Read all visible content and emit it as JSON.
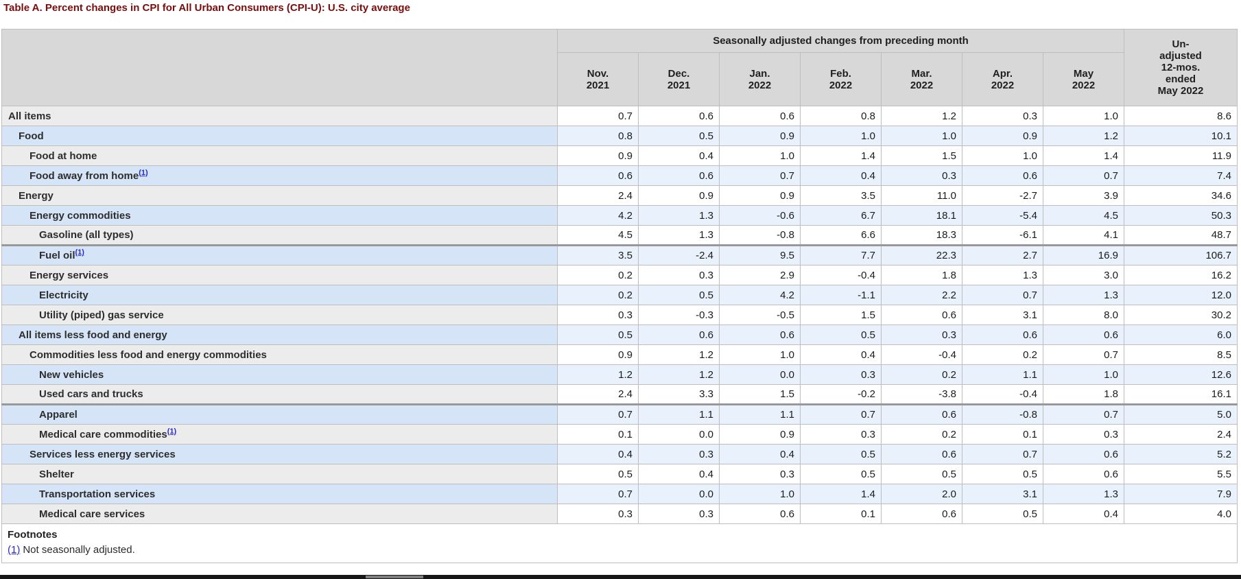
{
  "page": {
    "title": "Table A. Percent changes in CPI for All Urban Consumers (CPI-U): U.S. city average"
  },
  "table": {
    "header": {
      "spanner": "Seasonally adjusted changes from preceding month",
      "unadjusted": "Un-\nadjusted\n12-mos.\nended\nMay 2022",
      "months": [
        "Nov.\n2021",
        "Dec.\n2021",
        "Jan.\n2022",
        "Feb.\n2022",
        "Mar.\n2022",
        "Apr.\n2022",
        "May\n2022"
      ]
    },
    "rows": [
      {
        "label": "All items",
        "footnote": "",
        "level": 0,
        "shade": "gray",
        "separator": false,
        "monthly": [
          "0.7",
          "0.6",
          "0.6",
          "0.8",
          "1.2",
          "0.3",
          "1.0"
        ],
        "yoy": "8.6"
      },
      {
        "label": "Food",
        "footnote": "",
        "level": 1,
        "shade": "blue",
        "separator": false,
        "monthly": [
          "0.8",
          "0.5",
          "0.9",
          "1.0",
          "1.0",
          "0.9",
          "1.2"
        ],
        "yoy": "10.1"
      },
      {
        "label": "Food at home",
        "footnote": "",
        "level": 2,
        "shade": "gray",
        "separator": false,
        "monthly": [
          "0.9",
          "0.4",
          "1.0",
          "1.4",
          "1.5",
          "1.0",
          "1.4"
        ],
        "yoy": "11.9"
      },
      {
        "label": "Food away from home",
        "footnote": "(1)",
        "level": 2,
        "shade": "blue",
        "separator": false,
        "monthly": [
          "0.6",
          "0.6",
          "0.7",
          "0.4",
          "0.3",
          "0.6",
          "0.7"
        ],
        "yoy": "7.4"
      },
      {
        "label": "Energy",
        "footnote": "",
        "level": 1,
        "shade": "gray",
        "separator": false,
        "monthly": [
          "2.4",
          "0.9",
          "0.9",
          "3.5",
          "11.0",
          "-2.7",
          "3.9"
        ],
        "yoy": "34.6"
      },
      {
        "label": "Energy commodities",
        "footnote": "",
        "level": 2,
        "shade": "blue",
        "separator": false,
        "monthly": [
          "4.2",
          "1.3",
          "-0.6",
          "6.7",
          "18.1",
          "-5.4",
          "4.5"
        ],
        "yoy": "50.3"
      },
      {
        "label": "Gasoline (all types)",
        "footnote": "",
        "level": 3,
        "shade": "gray",
        "separator": false,
        "monthly": [
          "4.5",
          "1.3",
          "-0.8",
          "6.6",
          "18.3",
          "-6.1",
          "4.1"
        ],
        "yoy": "48.7"
      },
      {
        "label": "Fuel oil",
        "footnote": "(1)",
        "level": 3,
        "shade": "blue",
        "separator": true,
        "monthly": [
          "3.5",
          "-2.4",
          "9.5",
          "7.7",
          "22.3",
          "2.7",
          "16.9"
        ],
        "yoy": "106.7"
      },
      {
        "label": "Energy services",
        "footnote": "",
        "level": 2,
        "shade": "gray",
        "separator": false,
        "monthly": [
          "0.2",
          "0.3",
          "2.9",
          "-0.4",
          "1.8",
          "1.3",
          "3.0"
        ],
        "yoy": "16.2"
      },
      {
        "label": "Electricity",
        "footnote": "",
        "level": 3,
        "shade": "blue",
        "separator": false,
        "monthly": [
          "0.2",
          "0.5",
          "4.2",
          "-1.1",
          "2.2",
          "0.7",
          "1.3"
        ],
        "yoy": "12.0"
      },
      {
        "label": "Utility (piped) gas service",
        "footnote": "",
        "level": 3,
        "shade": "gray",
        "separator": false,
        "monthly": [
          "0.3",
          "-0.3",
          "-0.5",
          "1.5",
          "0.6",
          "3.1",
          "8.0"
        ],
        "yoy": "30.2"
      },
      {
        "label": "All items less food and energy",
        "footnote": "",
        "level": 1,
        "shade": "blue",
        "separator": false,
        "monthly": [
          "0.5",
          "0.6",
          "0.6",
          "0.5",
          "0.3",
          "0.6",
          "0.6"
        ],
        "yoy": "6.0"
      },
      {
        "label": "Commodities less food and energy commodities",
        "footnote": "",
        "level": 2,
        "shade": "gray",
        "separator": false,
        "monthly": [
          "0.9",
          "1.2",
          "1.0",
          "0.4",
          "-0.4",
          "0.2",
          "0.7"
        ],
        "yoy": "8.5"
      },
      {
        "label": "New vehicles",
        "footnote": "",
        "level": 3,
        "shade": "blue",
        "separator": false,
        "monthly": [
          "1.2",
          "1.2",
          "0.0",
          "0.3",
          "0.2",
          "1.1",
          "1.0"
        ],
        "yoy": "12.6"
      },
      {
        "label": "Used cars and trucks",
        "footnote": "",
        "level": 3,
        "shade": "gray",
        "separator": false,
        "monthly": [
          "2.4",
          "3.3",
          "1.5",
          "-0.2",
          "-3.8",
          "-0.4",
          "1.8"
        ],
        "yoy": "16.1"
      },
      {
        "label": "Apparel",
        "footnote": "",
        "level": 3,
        "shade": "blue",
        "separator": true,
        "monthly": [
          "0.7",
          "1.1",
          "1.1",
          "0.7",
          "0.6",
          "-0.8",
          "0.7"
        ],
        "yoy": "5.0"
      },
      {
        "label": "Medical care commodities",
        "footnote": "(1)",
        "level": 3,
        "shade": "gray",
        "separator": false,
        "monthly": [
          "0.1",
          "0.0",
          "0.9",
          "0.3",
          "0.2",
          "0.1",
          "0.3"
        ],
        "yoy": "2.4"
      },
      {
        "label": "Services less energy services",
        "footnote": "",
        "level": 2,
        "shade": "blue",
        "separator": false,
        "monthly": [
          "0.4",
          "0.3",
          "0.4",
          "0.5",
          "0.6",
          "0.7",
          "0.6"
        ],
        "yoy": "5.2"
      },
      {
        "label": "Shelter",
        "footnote": "",
        "level": 3,
        "shade": "gray",
        "separator": false,
        "monthly": [
          "0.5",
          "0.4",
          "0.3",
          "0.5",
          "0.5",
          "0.5",
          "0.6"
        ],
        "yoy": "5.5"
      },
      {
        "label": "Transportation services",
        "footnote": "",
        "level": 3,
        "shade": "blue",
        "separator": false,
        "monthly": [
          "0.7",
          "0.0",
          "1.0",
          "1.4",
          "2.0",
          "3.1",
          "1.3"
        ],
        "yoy": "7.9"
      },
      {
        "label": "Medical care services",
        "footnote": "",
        "level": 3,
        "shade": "gray",
        "separator": false,
        "monthly": [
          "0.3",
          "0.3",
          "0.6",
          "0.1",
          "0.6",
          "0.5",
          "0.4"
        ],
        "yoy": "4.0"
      }
    ]
  },
  "footnotes": {
    "heading": "Footnotes",
    "items": [
      {
        "marker": "(1)",
        "text": "Not seasonally adjusted."
      }
    ]
  },
  "colors": {
    "title": "#7a0c0c",
    "header_bg": "#d8d8d8",
    "row_gray_label": "#ececec",
    "row_gray_data": "#ffffff",
    "row_blue_label": "#d5e5f7",
    "row_blue_data": "#e9f2fc",
    "border": "#bdbdbd",
    "separator_border": "#989898",
    "link": "#2929cc",
    "bottom_bar": "#161616"
  }
}
